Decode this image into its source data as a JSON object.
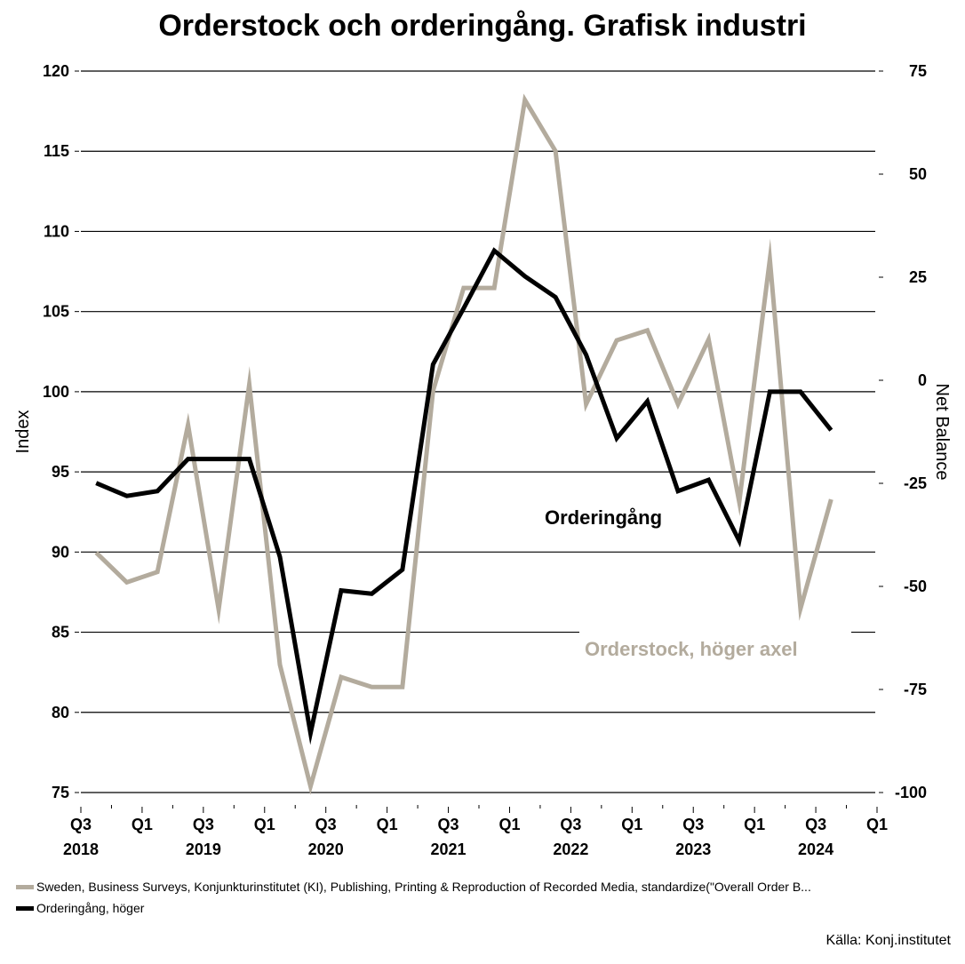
{
  "title": "Orderstock och orderingång. Grafisk industri",
  "source": "Källa: Konj.institutet",
  "legend": [
    {
      "label": "Sweden, Business Surveys, Konjunkturinstitutet (KI), Publishing, Printing & Reproduction of Recorded Media, standardize(\"Overall Order B...",
      "color": "#b3ab9d"
    },
    {
      "label": "Orderingång, höger",
      "color": "#000000"
    }
  ],
  "annotations": {
    "orderingang": "Orderingång",
    "orderstock": "Orderstock, höger axel"
  },
  "chart_data": {
    "type": "line",
    "title": "Orderstock och orderingång. Grafisk industri",
    "ylabel_left": "Index",
    "ylabel_right": "Net Balance",
    "xlabel": "",
    "ylim_left": [
      75,
      120
    ],
    "ylim_right": [
      -100,
      75
    ],
    "yticks_left": [
      75,
      80,
      85,
      90,
      95,
      100,
      105,
      110,
      115,
      120
    ],
    "yticks_right": [
      -100,
      -75,
      -50,
      -25,
      0,
      25,
      50,
      75
    ],
    "xticks": [
      {
        "q": "Q3",
        "year": "2018"
      },
      {
        "q": "Q1",
        "year": ""
      },
      {
        "q": "Q3",
        "year": "2019"
      },
      {
        "q": "Q1",
        "year": ""
      },
      {
        "q": "Q3",
        "year": "2020"
      },
      {
        "q": "Q1",
        "year": ""
      },
      {
        "q": "Q3",
        "year": "2021"
      },
      {
        "q": "Q1",
        "year": ""
      },
      {
        "q": "Q3",
        "year": "2022"
      },
      {
        "q": "Q1",
        "year": ""
      },
      {
        "q": "Q3",
        "year": "2023"
      },
      {
        "q": "Q1",
        "year": ""
      },
      {
        "q": "Q3",
        "year": "2024"
      },
      {
        "q": "Q1",
        "year": ""
      }
    ],
    "x_range_quarters": [
      "2018Q3",
      "2025Q1"
    ],
    "grid": true,
    "x": [
      "2018Q3",
      "2018Q4",
      "2019Q1",
      "2019Q2",
      "2019Q3",
      "2019Q4",
      "2020Q1",
      "2020Q2",
      "2020Q3",
      "2020Q4",
      "2021Q1",
      "2021Q2",
      "2021Q3",
      "2021Q4",
      "2022Q1",
      "2022Q2",
      "2022Q3",
      "2022Q4",
      "2023Q1",
      "2023Q2",
      "2023Q3",
      "2023Q4",
      "2024Q1",
      "2024Q2",
      "2024Q3"
    ],
    "series": [
      {
        "name": "Sweden, Business Surveys, Konjunkturinstitutet (KI), Publishing, Printing & Reproduction of Recorded Media, standardize(\"Overall Order B...",
        "axis": "right",
        "color": "#b3ab9d",
        "values": [
          -41.8,
          -49.0,
          -46.5,
          -10.8,
          -55.6,
          -1.0,
          -69.0,
          -98.5,
          -72.0,
          -74.4,
          -74.4,
          -2.6,
          22.4,
          22.4,
          68.0,
          55.6,
          -5.8,
          9.7,
          12.1,
          -5.8,
          9.9,
          -29.5,
          29.3,
          -55.4,
          -28.9
        ]
      },
      {
        "name": "Orderingång, höger",
        "axis": "left",
        "color": "#000000",
        "values": [
          94.3,
          93.5,
          93.8,
          95.8,
          95.8,
          95.8,
          89.7,
          78.7,
          87.6,
          87.4,
          88.9,
          101.7,
          105.2,
          108.8,
          107.2,
          105.9,
          102.3,
          97.1,
          99.4,
          93.8,
          94.5,
          90.7,
          100.0,
          100.0,
          97.6
        ]
      }
    ]
  }
}
